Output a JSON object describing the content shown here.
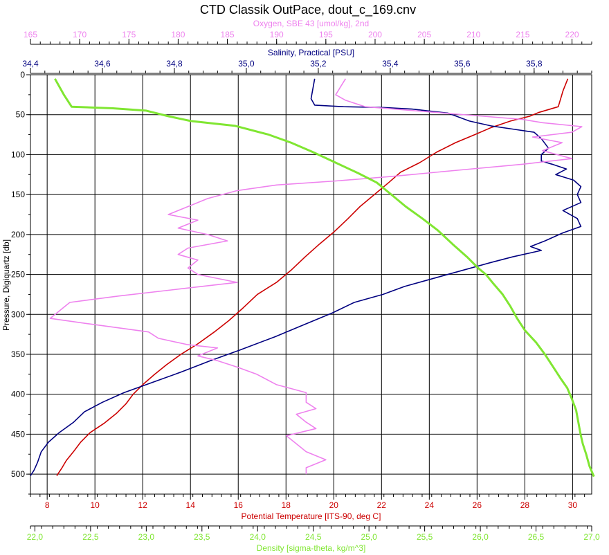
{
  "chart_data": {
    "type": "line",
    "title": "CTD Classik OutPace, dout_c_169.cnv",
    "y_axis": {
      "label": "Pressure, Digiquartz [db]",
      "range": [
        525,
        0
      ],
      "ticks": [
        "0",
        "50",
        "100",
        "150",
        "200",
        "250",
        "300",
        "350",
        "400",
        "450",
        "500"
      ],
      "tick_values": [
        0,
        50,
        100,
        150,
        200,
        250,
        300,
        350,
        400,
        450,
        500
      ]
    },
    "x_axes": [
      {
        "key": "oxygen",
        "position": "top",
        "row": 1,
        "label": "Oxygen, SBE 43 [umol/kg], 2nd",
        "color": "#ee82ee",
        "range": [
          165,
          222
        ],
        "ticks": [
          "165",
          "170",
          "175",
          "180",
          "185",
          "190",
          "195",
          "200",
          "205",
          "210",
          "215",
          "220"
        ],
        "tick_values": [
          165,
          170,
          175,
          180,
          185,
          190,
          195,
          200,
          205,
          210,
          215,
          220
        ]
      },
      {
        "key": "salinity",
        "position": "top",
        "row": 2,
        "label": "Salinity, Practical [PSU]",
        "color": "#000080",
        "range": [
          34.4,
          35.96
        ],
        "ticks": [
          "34,4",
          "34,6",
          "34,8",
          "35,0",
          "35,2",
          "35,4",
          "35,6",
          "35,8"
        ],
        "tick_values": [
          34.4,
          34.6,
          34.8,
          35.0,
          35.2,
          35.4,
          35.6,
          35.8
        ]
      },
      {
        "key": "temperature",
        "position": "bottom",
        "row": 1,
        "label": "Potential Temperature [ITS-90, deg C]",
        "color": "#cc0000",
        "range": [
          7.3,
          30.8
        ],
        "ticks": [
          "8",
          "10",
          "12",
          "14",
          "16",
          "18",
          "20",
          "22",
          "24",
          "26",
          "28",
          "30"
        ],
        "tick_values": [
          8,
          10,
          12,
          14,
          16,
          18,
          20,
          22,
          24,
          26,
          28,
          30
        ]
      },
      {
        "key": "density",
        "position": "bottom",
        "row": 2,
        "label": "Density [sigma-theta, kg/m^3]",
        "color": "#80e632",
        "range": [
          21.96,
          27.0
        ],
        "ticks": [
          "22,0",
          "22,5",
          "23,0",
          "23,5",
          "24,0",
          "24,5",
          "25,0",
          "25,5",
          "26,0",
          "26,5",
          "27,0"
        ],
        "tick_values": [
          22.0,
          22.5,
          23.0,
          23.5,
          24.0,
          24.5,
          25.0,
          25.5,
          26.0,
          26.5,
          27.0
        ]
      }
    ],
    "grid": true,
    "series": [
      {
        "axis": "temperature",
        "color": "#cc0000",
        "points": [
          [
            29.8,
            5
          ],
          [
            29.6,
            20
          ],
          [
            29.4,
            40
          ],
          [
            28.6,
            47
          ],
          [
            28.2,
            52
          ],
          [
            27.4,
            58
          ],
          [
            26.6,
            66
          ],
          [
            25.9,
            75
          ],
          [
            25.1,
            85
          ],
          [
            24.3,
            97
          ],
          [
            23.6,
            110
          ],
          [
            22.8,
            122
          ],
          [
            22.3,
            135
          ],
          [
            21.7,
            150
          ],
          [
            21.1,
            165
          ],
          [
            20.6,
            180
          ],
          [
            20.0,
            197
          ],
          [
            19.4,
            212
          ],
          [
            18.8,
            228
          ],
          [
            18.2,
            245
          ],
          [
            17.6,
            260
          ],
          [
            16.8,
            275
          ],
          [
            16.2,
            292
          ],
          [
            15.6,
            308
          ],
          [
            15.0,
            322
          ],
          [
            14.3,
            337
          ],
          [
            13.6,
            350
          ],
          [
            13.0,
            363
          ],
          [
            12.5,
            375
          ],
          [
            12.0,
            388
          ],
          [
            11.6,
            400
          ],
          [
            11.3,
            412
          ],
          [
            10.9,
            424
          ],
          [
            10.4,
            436
          ],
          [
            9.8,
            448
          ],
          [
            9.4,
            460
          ],
          [
            9.1,
            472
          ],
          [
            8.8,
            483
          ],
          [
            8.6,
            493
          ],
          [
            8.4,
            502
          ]
        ]
      },
      {
        "axis": "salinity",
        "color": "#000080",
        "points": [
          [
            35.19,
            5
          ],
          [
            35.18,
            30
          ],
          [
            35.19,
            38
          ],
          [
            35.27,
            40
          ],
          [
            35.38,
            41
          ],
          [
            35.46,
            43
          ],
          [
            35.56,
            48
          ],
          [
            35.62,
            58
          ],
          [
            35.68,
            64
          ],
          [
            35.74,
            68
          ],
          [
            35.8,
            72
          ],
          [
            35.82,
            80
          ],
          [
            35.84,
            92
          ],
          [
            35.82,
            100
          ],
          [
            35.82,
            108
          ],
          [
            35.85,
            112
          ],
          [
            35.89,
            118
          ],
          [
            35.86,
            125
          ],
          [
            35.91,
            132
          ],
          [
            35.93,
            140
          ],
          [
            35.92,
            150
          ],
          [
            35.93,
            160
          ],
          [
            35.88,
            170
          ],
          [
            35.92,
            180
          ],
          [
            35.93,
            190
          ],
          [
            35.88,
            198
          ],
          [
            35.83,
            208
          ],
          [
            35.79,
            215
          ],
          [
            35.82,
            220
          ],
          [
            35.74,
            228
          ],
          [
            35.68,
            235
          ],
          [
            35.6,
            245
          ],
          [
            35.52,
            255
          ],
          [
            35.44,
            265
          ],
          [
            35.38,
            275
          ],
          [
            35.3,
            285
          ],
          [
            35.24,
            298
          ],
          [
            35.16,
            313
          ],
          [
            35.08,
            328
          ],
          [
            34.98,
            345
          ],
          [
            34.9,
            358
          ],
          [
            34.82,
            372
          ],
          [
            34.74,
            385
          ],
          [
            34.66,
            398
          ],
          [
            34.6,
            410
          ],
          [
            34.55,
            422
          ],
          [
            34.52,
            435
          ],
          [
            34.48,
            448
          ],
          [
            34.45,
            460
          ],
          [
            34.43,
            472
          ],
          [
            34.42,
            485
          ],
          [
            34.41,
            495
          ],
          [
            34.4,
            502
          ]
        ]
      },
      {
        "axis": "oxygen",
        "color": "#ee82ee",
        "points": [
          [
            197,
            5
          ],
          [
            196.5,
            15
          ],
          [
            196,
            25
          ],
          [
            197,
            32
          ],
          [
            199,
            40
          ],
          [
            203,
            44
          ],
          [
            207,
            48
          ],
          [
            211,
            52
          ],
          [
            215,
            56
          ],
          [
            217,
            60
          ],
          [
            221,
            65
          ],
          [
            220,
            72
          ],
          [
            216,
            78
          ],
          [
            219,
            85
          ],
          [
            217,
            95
          ],
          [
            220,
            105
          ],
          [
            215,
            112
          ],
          [
            208,
            120
          ],
          [
            202,
            127
          ],
          [
            196,
            133
          ],
          [
            190,
            138
          ],
          [
            186,
            145
          ],
          [
            183,
            155
          ],
          [
            181,
            165
          ],
          [
            179,
            175
          ],
          [
            182,
            182
          ],
          [
            180,
            192
          ],
          [
            183,
            200
          ],
          [
            185,
            208
          ],
          [
            181,
            217
          ],
          [
            180,
            225
          ],
          [
            182,
            232
          ],
          [
            181,
            242
          ],
          [
            182,
            250
          ],
          [
            186,
            260
          ],
          [
            181,
            267
          ],
          [
            174,
            277
          ],
          [
            169,
            285
          ],
          [
            168,
            295
          ],
          [
            167,
            305
          ],
          [
            171,
            312
          ],
          [
            177,
            322
          ],
          [
            178,
            330
          ],
          [
            181,
            338
          ],
          [
            184,
            342
          ],
          [
            182,
            352
          ],
          [
            184,
            358
          ],
          [
            186,
            366
          ],
          [
            188,
            375
          ],
          [
            190,
            388
          ],
          [
            193,
            398
          ],
          [
            193,
            410
          ],
          [
            194,
            418
          ],
          [
            192,
            425
          ],
          [
            193,
            435
          ],
          [
            194,
            443
          ],
          [
            191,
            452
          ],
          [
            192,
            462
          ],
          [
            193,
            472
          ],
          [
            195,
            482
          ],
          [
            193,
            492
          ],
          [
            193,
            500
          ]
        ]
      },
      {
        "axis": "density",
        "color": "#80e632",
        "points": [
          [
            22.18,
            5
          ],
          [
            22.26,
            25
          ],
          [
            22.33,
            40
          ],
          [
            22.7,
            42
          ],
          [
            23.0,
            45
          ],
          [
            23.2,
            52
          ],
          [
            23.4,
            58
          ],
          [
            23.8,
            64
          ],
          [
            24.1,
            75
          ],
          [
            24.3,
            85
          ],
          [
            24.5,
            97
          ],
          [
            24.7,
            110
          ],
          [
            24.9,
            123
          ],
          [
            25.07,
            135
          ],
          [
            25.2,
            150
          ],
          [
            25.33,
            165
          ],
          [
            25.48,
            180
          ],
          [
            25.62,
            195
          ],
          [
            25.75,
            212
          ],
          [
            25.88,
            228
          ],
          [
            25.98,
            242
          ],
          [
            26.05,
            250
          ],
          [
            26.12,
            262
          ],
          [
            26.2,
            275
          ],
          [
            26.27,
            290
          ],
          [
            26.33,
            305
          ],
          [
            26.4,
            320
          ],
          [
            26.5,
            335
          ],
          [
            26.58,
            350
          ],
          [
            26.65,
            365
          ],
          [
            26.72,
            380
          ],
          [
            26.78,
            392
          ],
          [
            26.82,
            405
          ],
          [
            26.86,
            420
          ],
          [
            26.88,
            435
          ],
          [
            26.9,
            450
          ],
          [
            26.92,
            462
          ],
          [
            26.95,
            475
          ],
          [
            26.98,
            490
          ],
          [
            27.02,
            503
          ]
        ]
      }
    ]
  }
}
